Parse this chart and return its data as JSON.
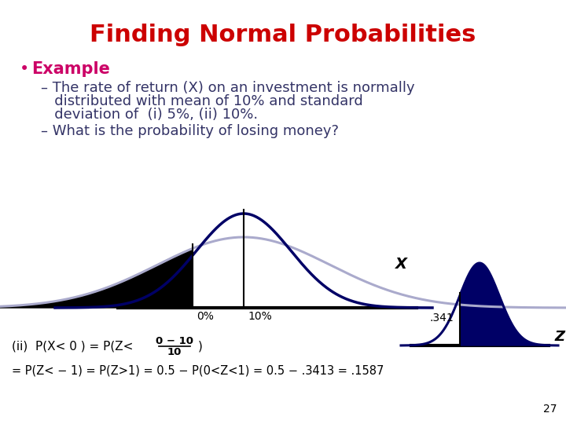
{
  "title": "Finding Normal Probabilities",
  "title_color": "#cc0000",
  "title_fontsize": 22,
  "bullet_example_color": "#cc0066",
  "bullet_example_text": "Example",
  "body_color": "#333366",
  "body_fontsize": 13,
  "line1": "– The rate of return (X) on an investment is normally",
  "line2": "   distributed with mean of 10% and standard",
  "line3": "   deviation of  (i) 5%, (ii) 10%.",
  "line4": "– What is the probability of losing money?",
  "curve_light_color": "#aaaacc",
  "curve_dark_color": "#000066",
  "fill_black_color": "#000000",
  "bg_color": "#ffffff",
  "label_341": ".341",
  "label_X": "X",
  "label_Z": "Z",
  "label_0pct": "0%",
  "label_10pct": "10%",
  "page_num": "27",
  "bottom_line1_a": "(ii)  P(X< 0 ) = P(Z<",
  "bottom_line1_b": ")",
  "frac_num": "0 − 10",
  "frac_den": "10",
  "bottom_line2": "= P(Z< − 1) = P(Z>1) = 0.5 − P(0<Z<1) = 0.5 − .3413 = .1587"
}
